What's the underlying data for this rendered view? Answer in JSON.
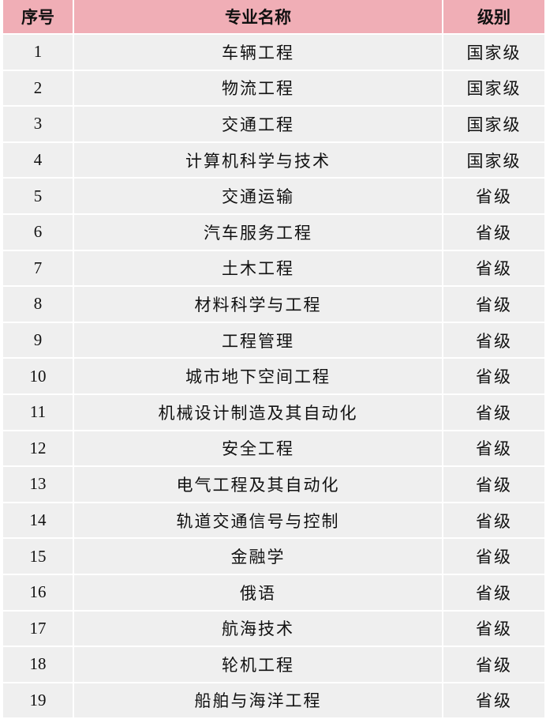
{
  "table": {
    "headers": [
      "序号",
      "专业名称",
      "级别"
    ],
    "rows": [
      [
        "1",
        "车辆工程",
        "国家级"
      ],
      [
        "2",
        "物流工程",
        "国家级"
      ],
      [
        "3",
        "交通工程",
        "国家级"
      ],
      [
        "4",
        "计算机科学与技术",
        "国家级"
      ],
      [
        "5",
        "交通运输",
        "省级"
      ],
      [
        "6",
        "汽车服务工程",
        "省级"
      ],
      [
        "7",
        "土木工程",
        "省级"
      ],
      [
        "8",
        "材料科学与工程",
        "省级"
      ],
      [
        "9",
        "工程管理",
        "省级"
      ],
      [
        "10",
        "城市地下空间工程",
        "省级"
      ],
      [
        "11",
        "机械设计制造及其自动化",
        "省级"
      ],
      [
        "12",
        "安全工程",
        "省级"
      ],
      [
        "13",
        "电气工程及其自动化",
        "省级"
      ],
      [
        "14",
        "轨道交通信号与控制",
        "省级"
      ],
      [
        "15",
        "金融学",
        "省级"
      ],
      [
        "16",
        "俄语",
        "省级"
      ],
      [
        "17",
        "航海技术",
        "省级"
      ],
      [
        "18",
        "轮机工程",
        "省级"
      ],
      [
        "19",
        "船舶与海洋工程",
        "省级"
      ]
    ]
  },
  "colors": {
    "header_bg": "#f0aeb6",
    "cell_bg": "#efefef"
  }
}
